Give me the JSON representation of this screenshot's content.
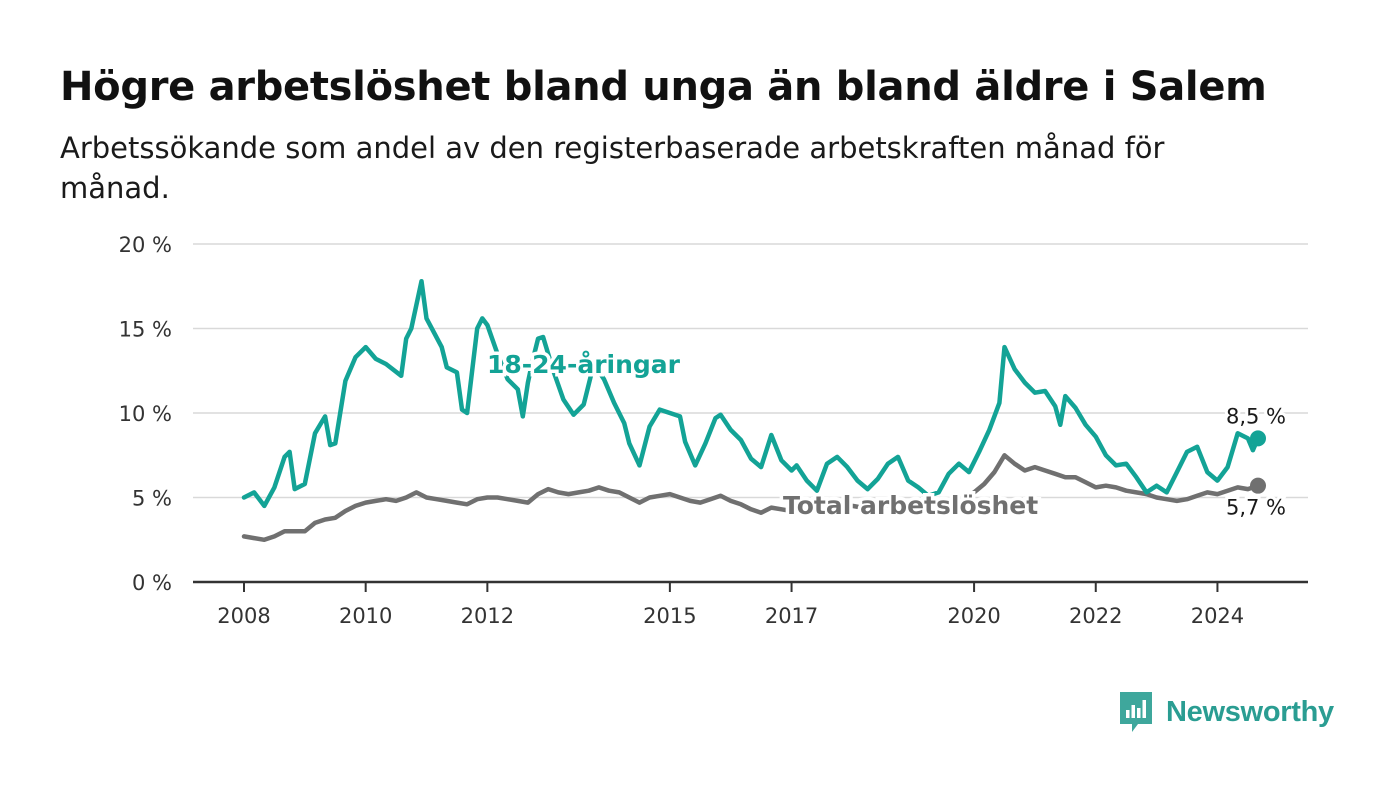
{
  "title": "Högre arbetslöshet bland unga än bland äldre i Salem",
  "subtitle": "Arbetssökande som andel av den registerbaserade arbetskraften månad för månad.",
  "brand": {
    "name": "Newsworthy"
  },
  "colors": {
    "youth": "#13a396",
    "total": "#707070",
    "grid": "#d9d9d9",
    "axis": "#333333"
  },
  "chart_data": {
    "type": "line",
    "x_ticks": [
      "2008",
      "2010",
      "2012",
      "2015",
      "2017",
      "2020",
      "2022",
      "2024"
    ],
    "ylim": [
      0,
      20
    ],
    "y_ticks": [
      0,
      5,
      10,
      15,
      20
    ],
    "y_tick_labels": [
      "0 %",
      "5 %",
      "10 %",
      "15 %",
      "20 %"
    ],
    "grid": true,
    "series": [
      {
        "name": "18-24-åringar",
        "color": "#13a396",
        "end_label": "8,5 %",
        "points": [
          [
            "2008-01",
            5.0
          ],
          [
            "2008-03",
            5.3
          ],
          [
            "2008-05",
            4.5
          ],
          [
            "2008-07",
            5.6
          ],
          [
            "2008-09",
            7.4
          ],
          [
            "2008-10",
            7.7
          ],
          [
            "2008-11",
            5.5
          ],
          [
            "2009-01",
            5.8
          ],
          [
            "2009-03",
            8.8
          ],
          [
            "2009-05",
            9.8
          ],
          [
            "2009-06",
            8.1
          ],
          [
            "2009-07",
            8.2
          ],
          [
            "2009-09",
            11.9
          ],
          [
            "2009-11",
            13.3
          ],
          [
            "2010-01",
            13.9
          ],
          [
            "2010-03",
            13.2
          ],
          [
            "2010-05",
            12.9
          ],
          [
            "2010-08",
            12.2
          ],
          [
            "2010-09",
            14.4
          ],
          [
            "2010-10",
            15.0
          ],
          [
            "2010-12",
            17.8
          ],
          [
            "2011-01",
            15.6
          ],
          [
            "2011-04",
            13.9
          ],
          [
            "2011-05",
            12.7
          ],
          [
            "2011-07",
            12.4
          ],
          [
            "2011-08",
            10.2
          ],
          [
            "2011-09",
            10.0
          ],
          [
            "2011-11",
            15.0
          ],
          [
            "2011-12",
            15.6
          ],
          [
            "2012-01",
            15.2
          ],
          [
            "2012-03",
            13.5
          ],
          [
            "2012-05",
            12.0
          ],
          [
            "2012-07",
            11.4
          ],
          [
            "2012-08",
            9.8
          ],
          [
            "2012-09",
            11.8
          ],
          [
            "2012-10",
            13.2
          ],
          [
            "2012-11",
            14.4
          ],
          [
            "2012-12",
            14.5
          ],
          [
            "2013-02",
            12.5
          ],
          [
            "2013-04",
            10.8
          ],
          [
            "2013-06",
            9.9
          ],
          [
            "2013-08",
            10.5
          ],
          [
            "2013-10",
            12.9
          ],
          [
            "2013-12",
            12.0
          ],
          [
            "2014-02",
            10.6
          ],
          [
            "2014-04",
            9.4
          ],
          [
            "2014-05",
            8.2
          ],
          [
            "2014-07",
            6.9
          ],
          [
            "2014-09",
            9.2
          ],
          [
            "2014-11",
            10.2
          ],
          [
            "2015-01",
            10.0
          ],
          [
            "2015-03",
            9.8
          ],
          [
            "2015-04",
            8.3
          ],
          [
            "2015-06",
            6.9
          ],
          [
            "2015-08",
            8.2
          ],
          [
            "2015-10",
            9.7
          ],
          [
            "2015-11",
            9.9
          ],
          [
            "2016-01",
            9.0
          ],
          [
            "2016-03",
            8.4
          ],
          [
            "2016-05",
            7.3
          ],
          [
            "2016-07",
            6.8
          ],
          [
            "2016-09",
            8.7
          ],
          [
            "2016-11",
            7.2
          ],
          [
            "2017-01",
            6.6
          ],
          [
            "2017-02",
            6.9
          ],
          [
            "2017-04",
            6.0
          ],
          [
            "2017-06",
            5.4
          ],
          [
            "2017-08",
            7.0
          ],
          [
            "2017-10",
            7.4
          ],
          [
            "2017-12",
            6.8
          ],
          [
            "2018-02",
            6.0
          ],
          [
            "2018-04",
            5.5
          ],
          [
            "2018-06",
            6.1
          ],
          [
            "2018-08",
            7.0
          ],
          [
            "2018-10",
            7.4
          ],
          [
            "2018-12",
            6.0
          ],
          [
            "2019-02",
            5.6
          ],
          [
            "2019-04",
            5.1
          ],
          [
            "2019-06",
            5.3
          ],
          [
            "2019-08",
            6.4
          ],
          [
            "2019-10",
            7.0
          ],
          [
            "2019-12",
            6.5
          ],
          [
            "2020-02",
            7.7
          ],
          [
            "2020-04",
            9.0
          ],
          [
            "2020-06",
            10.6
          ],
          [
            "2020-07",
            13.9
          ],
          [
            "2020-09",
            12.6
          ],
          [
            "2020-11",
            11.8
          ],
          [
            "2021-01",
            11.2
          ],
          [
            "2021-03",
            11.3
          ],
          [
            "2021-05",
            10.4
          ],
          [
            "2021-06",
            9.3
          ],
          [
            "2021-07",
            11.0
          ],
          [
            "2021-09",
            10.3
          ],
          [
            "2021-11",
            9.3
          ],
          [
            "2022-01",
            8.6
          ],
          [
            "2022-03",
            7.5
          ],
          [
            "2022-05",
            6.9
          ],
          [
            "2022-07",
            7.0
          ],
          [
            "2022-09",
            6.2
          ],
          [
            "2022-11",
            5.3
          ],
          [
            "2023-01",
            5.7
          ],
          [
            "2023-03",
            5.3
          ],
          [
            "2023-05",
            6.5
          ],
          [
            "2023-07",
            7.7
          ],
          [
            "2023-09",
            8.0
          ],
          [
            "2023-11",
            6.5
          ],
          [
            "2024-01",
            6.0
          ],
          [
            "2024-03",
            6.8
          ],
          [
            "2024-05",
            8.8
          ],
          [
            "2024-07",
            8.5
          ],
          [
            "2024-08",
            7.8
          ],
          [
            "2024-09",
            8.5
          ]
        ]
      },
      {
        "name": "Total arbetslöshet",
        "color": "#707070",
        "end_label": "5,7 %",
        "points": [
          [
            "2008-01",
            2.7
          ],
          [
            "2008-03",
            2.6
          ],
          [
            "2008-05",
            2.5
          ],
          [
            "2008-07",
            2.7
          ],
          [
            "2008-09",
            3.0
          ],
          [
            "2008-11",
            3.0
          ],
          [
            "2009-01",
            3.0
          ],
          [
            "2009-03",
            3.5
          ],
          [
            "2009-05",
            3.7
          ],
          [
            "2009-07",
            3.8
          ],
          [
            "2009-09",
            4.2
          ],
          [
            "2009-11",
            4.5
          ],
          [
            "2010-01",
            4.7
          ],
          [
            "2010-03",
            4.8
          ],
          [
            "2010-05",
            4.9
          ],
          [
            "2010-07",
            4.8
          ],
          [
            "2010-09",
            5.0
          ],
          [
            "2010-11",
            5.3
          ],
          [
            "2011-01",
            5.0
          ],
          [
            "2011-03",
            4.9
          ],
          [
            "2011-05",
            4.8
          ],
          [
            "2011-07",
            4.7
          ],
          [
            "2011-09",
            4.6
          ],
          [
            "2011-11",
            4.9
          ],
          [
            "2012-01",
            5.0
          ],
          [
            "2012-03",
            5.0
          ],
          [
            "2012-05",
            4.9
          ],
          [
            "2012-07",
            4.8
          ],
          [
            "2012-09",
            4.7
          ],
          [
            "2012-11",
            5.2
          ],
          [
            "2013-01",
            5.5
          ],
          [
            "2013-03",
            5.3
          ],
          [
            "2013-05",
            5.2
          ],
          [
            "2013-07",
            5.3
          ],
          [
            "2013-09",
            5.4
          ],
          [
            "2013-11",
            5.6
          ],
          [
            "2014-01",
            5.4
          ],
          [
            "2014-03",
            5.3
          ],
          [
            "2014-05",
            5.0
          ],
          [
            "2014-07",
            4.7
          ],
          [
            "2014-09",
            5.0
          ],
          [
            "2014-11",
            5.1
          ],
          [
            "2015-01",
            5.2
          ],
          [
            "2015-03",
            5.0
          ],
          [
            "2015-05",
            4.8
          ],
          [
            "2015-07",
            4.7
          ],
          [
            "2015-09",
            4.9
          ],
          [
            "2015-11",
            5.1
          ],
          [
            "2016-01",
            4.8
          ],
          [
            "2016-03",
            4.6
          ],
          [
            "2016-05",
            4.3
          ],
          [
            "2016-07",
            4.1
          ],
          [
            "2016-09",
            4.4
          ],
          [
            "2016-11",
            4.3
          ],
          [
            "2017-01",
            4.2
          ],
          [
            "2017-03",
            4.4
          ],
          [
            "2017-05",
            4.6
          ],
          [
            "2017-07",
            4.7
          ],
          [
            "2017-09",
            4.6
          ],
          [
            "2017-11",
            4.5
          ],
          [
            "2018-01",
            4.5
          ],
          [
            "2018-03",
            4.4
          ],
          [
            "2018-05",
            4.5
          ],
          [
            "2018-07",
            4.6
          ],
          [
            "2018-09",
            4.5
          ],
          [
            "2018-11",
            4.4
          ],
          [
            "2019-01",
            4.4
          ],
          [
            "2019-03",
            4.5
          ],
          [
            "2019-05",
            4.6
          ],
          [
            "2019-07",
            4.7
          ],
          [
            "2019-09",
            4.8
          ],
          [
            "2019-11",
            5.0
          ],
          [
            "2020-01",
            5.3
          ],
          [
            "2020-03",
            5.8
          ],
          [
            "2020-05",
            6.5
          ],
          [
            "2020-07",
            7.5
          ],
          [
            "2020-09",
            7.0
          ],
          [
            "2020-11",
            6.6
          ],
          [
            "2021-01",
            6.8
          ],
          [
            "2021-03",
            6.6
          ],
          [
            "2021-05",
            6.4
          ],
          [
            "2021-07",
            6.2
          ],
          [
            "2021-09",
            6.2
          ],
          [
            "2021-11",
            5.9
          ],
          [
            "2022-01",
            5.6
          ],
          [
            "2022-03",
            5.7
          ],
          [
            "2022-05",
            5.6
          ],
          [
            "2022-07",
            5.4
          ],
          [
            "2022-09",
            5.3
          ],
          [
            "2022-11",
            5.2
          ],
          [
            "2023-01",
            5.0
          ],
          [
            "2023-03",
            4.9
          ],
          [
            "2023-05",
            4.8
          ],
          [
            "2023-07",
            4.9
          ],
          [
            "2023-09",
            5.1
          ],
          [
            "2023-11",
            5.3
          ],
          [
            "2024-01",
            5.2
          ],
          [
            "2024-03",
            5.4
          ],
          [
            "2024-05",
            5.6
          ],
          [
            "2024-07",
            5.5
          ],
          [
            "2024-09",
            5.7
          ]
        ]
      }
    ]
  }
}
